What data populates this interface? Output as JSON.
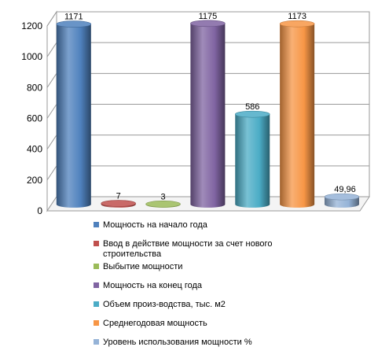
{
  "chart_data": {
    "type": "bar",
    "subtype": "3d-cylinder",
    "ylim": [
      0,
      1200
    ],
    "yticks": [
      "0",
      "200",
      "400",
      "600",
      "800",
      "1000",
      "1200"
    ],
    "grid": true,
    "legend_position": "bottom",
    "series": [
      {
        "name": "Мощность на начало года",
        "value": 1171,
        "label": "1171",
        "color": "#4f81bd"
      },
      {
        "name": "Ввод в действие мощности за счет нового строительства",
        "name_lines": [
          "Ввод в действие мощности за счет нового",
          "строительства"
        ],
        "value": 7,
        "label": "7",
        "color": "#c0504d"
      },
      {
        "name": "Выбытие мощности",
        "value": 3,
        "label": "3",
        "color": "#9bbb59"
      },
      {
        "name": "Мощность на конец года",
        "value": 1175,
        "label": "1175",
        "color": "#8064a2"
      },
      {
        "name": "Объем произ-водства, тыс. м2",
        "value": 586,
        "label": "586",
        "color": "#4bacc6"
      },
      {
        "name": "Среднегодовая мощность",
        "value": 1173,
        "label": "1173",
        "color": "#f79646"
      },
      {
        "name": "Уровень использования мощности %",
        "value": 49.96,
        "label": "49,96",
        "color": "#95b3d7"
      }
    ]
  }
}
